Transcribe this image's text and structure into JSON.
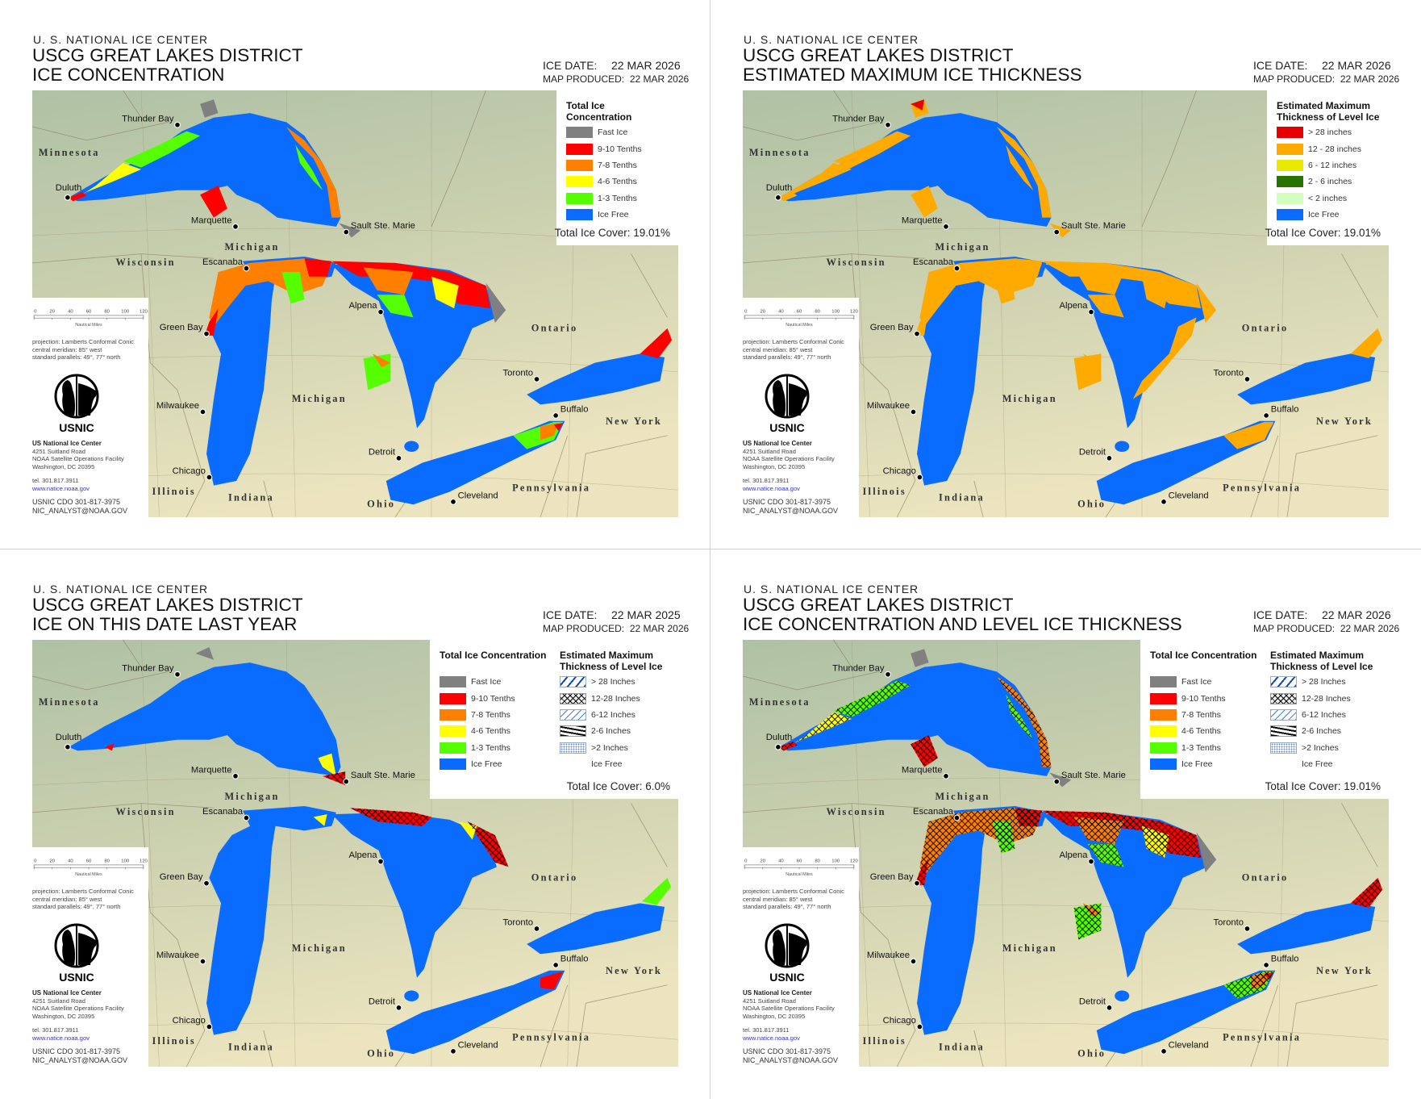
{
  "agency": "U. S. NATIONAL ICE CENTER",
  "colors": {
    "fast_ice": "#808080",
    "c9_10": "#ff0000",
    "c7_8": "#ff8000",
    "c4_6": "#ffff00",
    "c1_3": "#55ff00",
    "ice_free": "#0a6cff",
    "t28plus": "#e60000",
    "t12_28": "#ffaa00",
    "t6_12": "#e8e800",
    "t2_6": "#267300",
    "tlt2": "#d3ffbe",
    "land_north": "#afc1a4",
    "land_south": "#ebe4bf"
  },
  "panels": [
    {
      "title1": "USCG GREAT LAKES DISTRICT",
      "title2": "ICE CONCENTRATION",
      "ice_date_label": "ICE DATE:",
      "ice_date": "22 MAR 2026",
      "map_produced_label": "MAP PRODUCED:",
      "map_produced": "22 MAR 2026",
      "total_ice_cover": "Total Ice Cover: 19.01%",
      "legends": [
        {
          "title": "Total Ice Concentration",
          "items": [
            {
              "label": "Fast Ice",
              "color": "#808080"
            },
            {
              "label": "9-10 Tenths",
              "color": "#ff0000"
            },
            {
              "label": "7-8 Tenths",
              "color": "#ff8000"
            },
            {
              "label": "4-6 Tenths",
              "color": "#ffff00"
            },
            {
              "label": "1-3 Tenths",
              "color": "#55ff00"
            },
            {
              "label": "Ice Free",
              "color": "#0a6cff"
            }
          ]
        }
      ]
    },
    {
      "title1": "USCG GREAT LAKES DISTRICT",
      "title2": "ESTIMATED MAXIMUM ICE THICKNESS",
      "ice_date_label": "ICE DATE:",
      "ice_date": "22 MAR 2026",
      "map_produced_label": "MAP PRODUCED:",
      "map_produced": "22 MAR 2026",
      "total_ice_cover": "Total Ice Cover: 19.01%",
      "legends": [
        {
          "title": "Estimated Maximum Thickness of Level Ice",
          "items": [
            {
              "label": "> 28 inches",
              "color": "#e60000"
            },
            {
              "label": "12 - 28 inches",
              "color": "#ffaa00"
            },
            {
              "label": "6 - 12 inches",
              "color": "#e8e800"
            },
            {
              "label": "2 - 6 inches",
              "color": "#267300"
            },
            {
              "label": "< 2 inches",
              "color": "#d3ffbe"
            },
            {
              "label": "Ice Free",
              "color": "#0a6cff"
            }
          ]
        }
      ]
    },
    {
      "title1": "USCG GREAT LAKES DISTRICT",
      "title2": "ICE ON THIS DATE LAST YEAR",
      "ice_date_label": "ICE DATE:",
      "ice_date": "22 MAR 2025",
      "map_produced_label": "MAP PRODUCED:",
      "map_produced": "22 MAR 2026",
      "total_ice_cover": "Total Ice Cover: 6.0%",
      "legends": [
        {
          "title": "Total Ice Concentration",
          "items": [
            {
              "label": "Fast Ice",
              "color": "#808080"
            },
            {
              "label": "9-10 Tenths",
              "color": "#ff0000"
            },
            {
              "label": "7-8 Tenths",
              "color": "#ff8000"
            },
            {
              "label": "4-6 Tenths",
              "color": "#ffff00"
            },
            {
              "label": "1-3 Tenths",
              "color": "#55ff00"
            },
            {
              "label": "Ice Free",
              "color": "#0a6cff"
            }
          ]
        },
        {
          "title": "Estimated Maximum Thickness of Level Ice",
          "items": [
            {
              "label": "> 28 Inches",
              "pattern": "blue-dashes"
            },
            {
              "label": "12-28 Inches",
              "pattern": "crosshatch"
            },
            {
              "label": "6-12 Inches",
              "pattern": "diagonal-blue"
            },
            {
              "label": "2-6 Inches",
              "pattern": "black-dashes"
            },
            {
              "label": ">2 Inches",
              "pattern": "blue-dots"
            },
            {
              "label": "Ice Free",
              "pattern": "none"
            }
          ]
        }
      ]
    },
    {
      "title1": "USCG GREAT LAKES DISTRICT",
      "title2": "ICE CONCENTRATION AND LEVEL ICE THICKNESS",
      "ice_date_label": "ICE DATE:",
      "ice_date": "22 MAR 2026",
      "map_produced_label": "MAP PRODUCED:",
      "map_produced": "22 MAR 2026",
      "total_ice_cover": "Total Ice Cover: 19.01%",
      "legends": [
        {
          "title": "Total Ice Concentration",
          "items": [
            {
              "label": "Fast Ice",
              "color": "#808080"
            },
            {
              "label": "9-10 Tenths",
              "color": "#ff0000"
            },
            {
              "label": "7-8 Tenths",
              "color": "#ff8000"
            },
            {
              "label": "4-6 Tenths",
              "color": "#ffff00"
            },
            {
              "label": "1-3 Tenths",
              "color": "#55ff00"
            },
            {
              "label": "Ice Free",
              "color": "#0a6cff"
            }
          ]
        },
        {
          "title": "Estimated Maximum Thickness of Level Ice",
          "items": [
            {
              "label": "> 28 Inches",
              "pattern": "blue-dashes"
            },
            {
              "label": "12-28 Inches",
              "pattern": "crosshatch"
            },
            {
              "label": "6-12 Inches",
              "pattern": "diagonal-blue"
            },
            {
              "label": "2-6 Inches",
              "pattern": "black-dashes"
            },
            {
              "label": ">2 Inches",
              "pattern": "blue-dots"
            },
            {
              "label": "Ice Free",
              "pattern": "none"
            }
          ]
        }
      ]
    }
  ],
  "cities": [
    "Thunder Bay",
    "Duluth",
    "Marquette",
    "Sault Ste. Marie",
    "Escanaba",
    "Green Bay",
    "Alpena",
    "Milwaukee",
    "Chicago",
    "Detroit",
    "Toronto",
    "Buffalo",
    "Cleveland"
  ],
  "regions": [
    "Minnesota",
    "Wisconsin",
    "Michigan",
    "Michigan",
    "Ontario",
    "New York",
    "Pennsylvania",
    "Ohio",
    "Indiana",
    "Illinois"
  ],
  "scale": {
    "ticks": [
      "0",
      "20",
      "40",
      "60",
      "80",
      "100",
      "120"
    ],
    "unit": "Nautical Miles"
  },
  "info": {
    "projection": "projection: Lamberts Conformal Conic",
    "meridian": "central meridian: 85° west",
    "parallels": "standard parallels: 49°, 77° north",
    "logo_text": "USNIC",
    "org_name": "US National Ice Center",
    "address1": "4251 Suitland Road",
    "address2": "NOAA Satellite Operations Facility",
    "address3": "Washington, DC  20395",
    "tel": "tel. 301.817.3911",
    "website": "www.natice.noaa.gov",
    "cdo": "USNIC CDO 301-817-3975",
    "email": "NIC_ANALYST@NOAA.GOV"
  }
}
